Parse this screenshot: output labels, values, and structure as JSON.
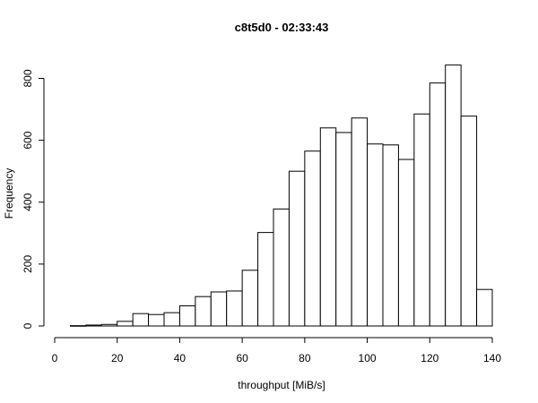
{
  "chart_data": {
    "type": "bar",
    "title": "c8t5d0 - 02:33:43",
    "xlabel": "throughput [MiB/s]",
    "ylabel": "Frequency",
    "xlim": [
      0,
      140
    ],
    "ylim": [
      0,
      800
    ],
    "x_ticks": [
      0,
      20,
      40,
      60,
      80,
      100,
      120,
      140
    ],
    "y_ticks": [
      0,
      200,
      400,
      600,
      800
    ],
    "bin_width": 5,
    "bins": [
      {
        "x0": 5,
        "x1": 10,
        "count": 1
      },
      {
        "x0": 10,
        "x1": 15,
        "count": 3
      },
      {
        "x0": 15,
        "x1": 20,
        "count": 5
      },
      {
        "x0": 20,
        "x1": 25,
        "count": 15
      },
      {
        "x0": 25,
        "x1": 30,
        "count": 40
      },
      {
        "x0": 30,
        "x1": 35,
        "count": 37
      },
      {
        "x0": 35,
        "x1": 40,
        "count": 43
      },
      {
        "x0": 40,
        "x1": 45,
        "count": 65
      },
      {
        "x0": 45,
        "x1": 50,
        "count": 95
      },
      {
        "x0": 50,
        "x1": 55,
        "count": 110
      },
      {
        "x0": 55,
        "x1": 60,
        "count": 113
      },
      {
        "x0": 60,
        "x1": 65,
        "count": 180
      },
      {
        "x0": 65,
        "x1": 70,
        "count": 302
      },
      {
        "x0": 70,
        "x1": 75,
        "count": 378
      },
      {
        "x0": 75,
        "x1": 80,
        "count": 500
      },
      {
        "x0": 80,
        "x1": 85,
        "count": 565
      },
      {
        "x0": 85,
        "x1": 90,
        "count": 640
      },
      {
        "x0": 90,
        "x1": 95,
        "count": 625
      },
      {
        "x0": 95,
        "x1": 100,
        "count": 672
      },
      {
        "x0": 100,
        "x1": 105,
        "count": 588
      },
      {
        "x0": 105,
        "x1": 110,
        "count": 585
      },
      {
        "x0": 110,
        "x1": 115,
        "count": 538
      },
      {
        "x0": 115,
        "x1": 120,
        "count": 685
      },
      {
        "x0": 120,
        "x1": 125,
        "count": 785
      },
      {
        "x0": 125,
        "x1": 130,
        "count": 843
      },
      {
        "x0": 130,
        "x1": 135,
        "count": 678
      },
      {
        "x0": 135,
        "x1": 140,
        "count": 118
      }
    ],
    "bar_fill": "#ffffff",
    "bar_stroke": "#000000",
    "grid": false,
    "legend": "none"
  }
}
